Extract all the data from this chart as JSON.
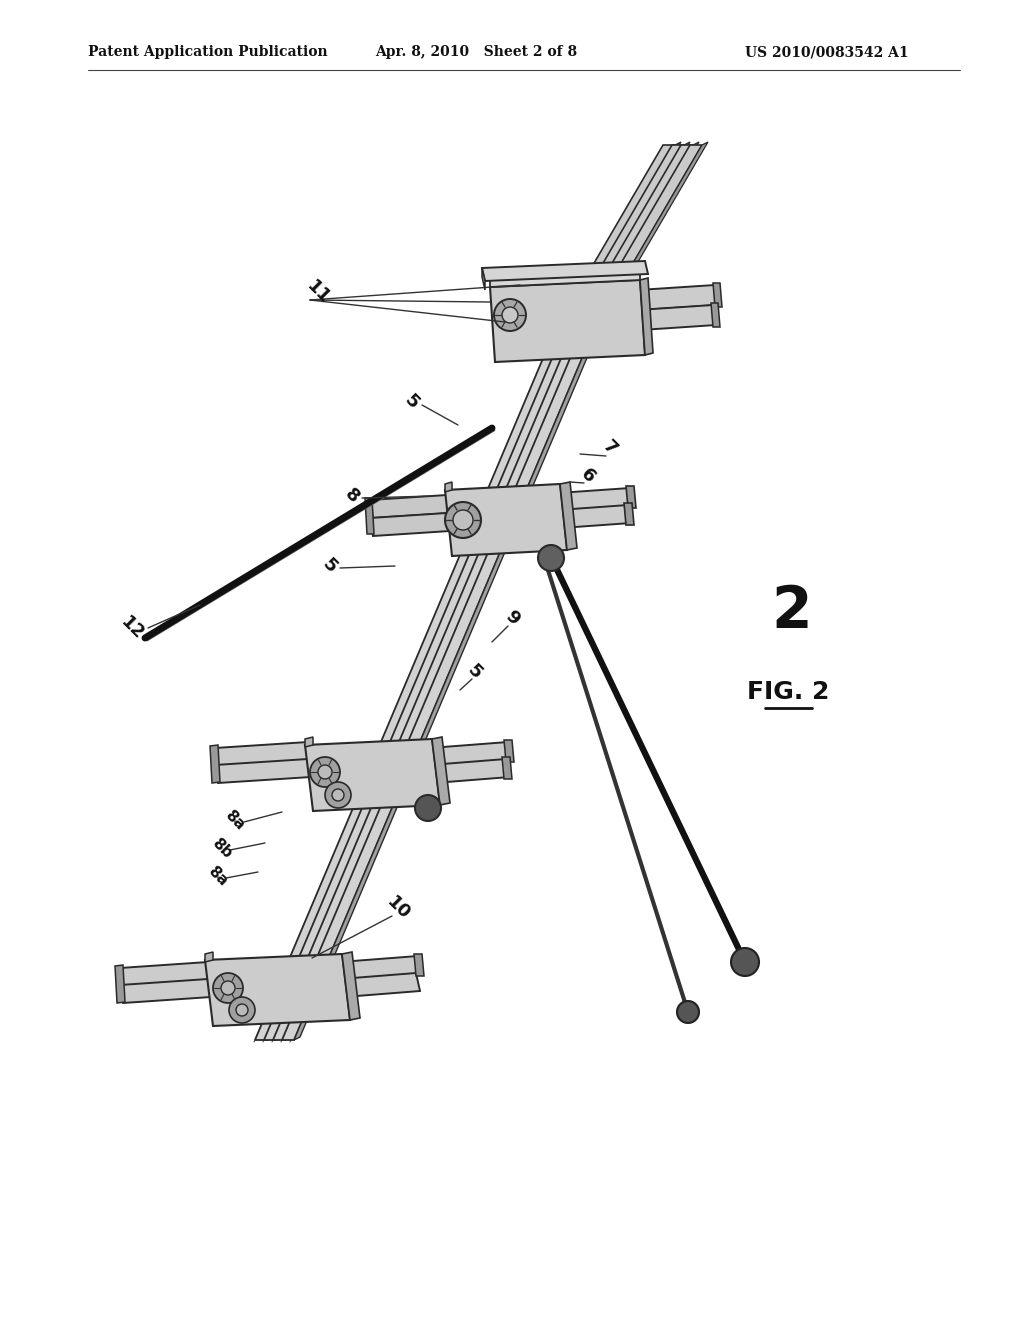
{
  "bg": "#ffffff",
  "header_left": "Patent Application Publication",
  "header_mid": "Apr. 8, 2010   Sheet 2 of 8",
  "header_right": "US 2010/0083542 A1",
  "fig_num": "2",
  "fig_label": "FIG. 2",
  "c_dark": "#2a2a2a",
  "c_face": "#d0d0d0",
  "c_side": "#a0a0a0",
  "c_mid": "#b8b8b8"
}
